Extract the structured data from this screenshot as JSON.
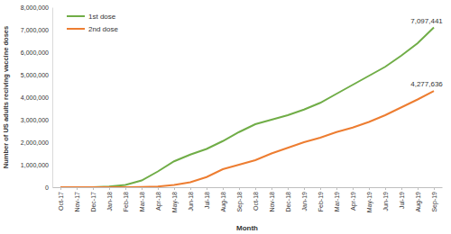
{
  "chart_data": {
    "type": "line",
    "x_label": "Month",
    "y_label": "Number of US adults reciving vaccine doses",
    "categories": [
      "Oct-17",
      "Nov-17",
      "Dec-17",
      "Jan-18",
      "Feb-18",
      "Mar-18",
      "Apr-18",
      "May-18",
      "Jun-18",
      "Jul-18",
      "Aug-18",
      "Sep-18",
      "Oct-18",
      "Nov-18",
      "Dec-18",
      "Jan-19",
      "Feb-19",
      "Mar-19",
      "Apr-19",
      "May-19",
      "Jun-19",
      "Jul-19",
      "Aug-19",
      "Sep-19"
    ],
    "series": [
      {
        "name": "1st dose",
        "color": "#70ad47",
        "values": [
          0,
          0,
          5000,
          30000,
          100000,
          300000,
          700000,
          1150000,
          1450000,
          1700000,
          2050000,
          2450000,
          2800000,
          3000000,
          3200000,
          3450000,
          3750000,
          4150000,
          4550000,
          4950000,
          5350000,
          5850000,
          6400000,
          7097441
        ],
        "value_labels": [
          null,
          null,
          null,
          null,
          null,
          null,
          null,
          null,
          null,
          null,
          null,
          null,
          null,
          null,
          null,
          null,
          null,
          null,
          null,
          null,
          null,
          null,
          null,
          "7,097,441"
        ]
      },
      {
        "name": "2nd dose",
        "color": "#ed7d31",
        "values": [
          0,
          0,
          0,
          0,
          5000,
          10000,
          30000,
          100000,
          220000,
          450000,
          800000,
          1000000,
          1200000,
          1500000,
          1750000,
          2000000,
          2200000,
          2450000,
          2650000,
          2900000,
          3200000,
          3550000,
          3900000,
          4277636
        ],
        "value_labels": [
          null,
          null,
          null,
          null,
          null,
          null,
          null,
          null,
          null,
          null,
          null,
          null,
          null,
          null,
          null,
          null,
          null,
          null,
          null,
          null,
          null,
          null,
          null,
          "4,277,636"
        ]
      }
    ],
    "ylim": [
      0,
      8000000
    ],
    "yticks": [
      0,
      {
        "value": 1000000,
        "label": "1,000,000"
      },
      {
        "value": 2000000,
        "label": "2,000,000"
      },
      {
        "value": 3000000,
        "label": "3,000,000"
      },
      {
        "value": 4000000,
        "label": "4,000,000"
      },
      {
        "value": 5000000,
        "label": "5,000,000"
      },
      {
        "value": 6000000,
        "label": "6,000,000"
      },
      {
        "value": 7000000,
        "label": "7,000,000"
      },
      {
        "value": 8000000,
        "label": "8,000,000"
      }
    ],
    "grid": false,
    "legend": "top-left",
    "data_labels": true
  }
}
